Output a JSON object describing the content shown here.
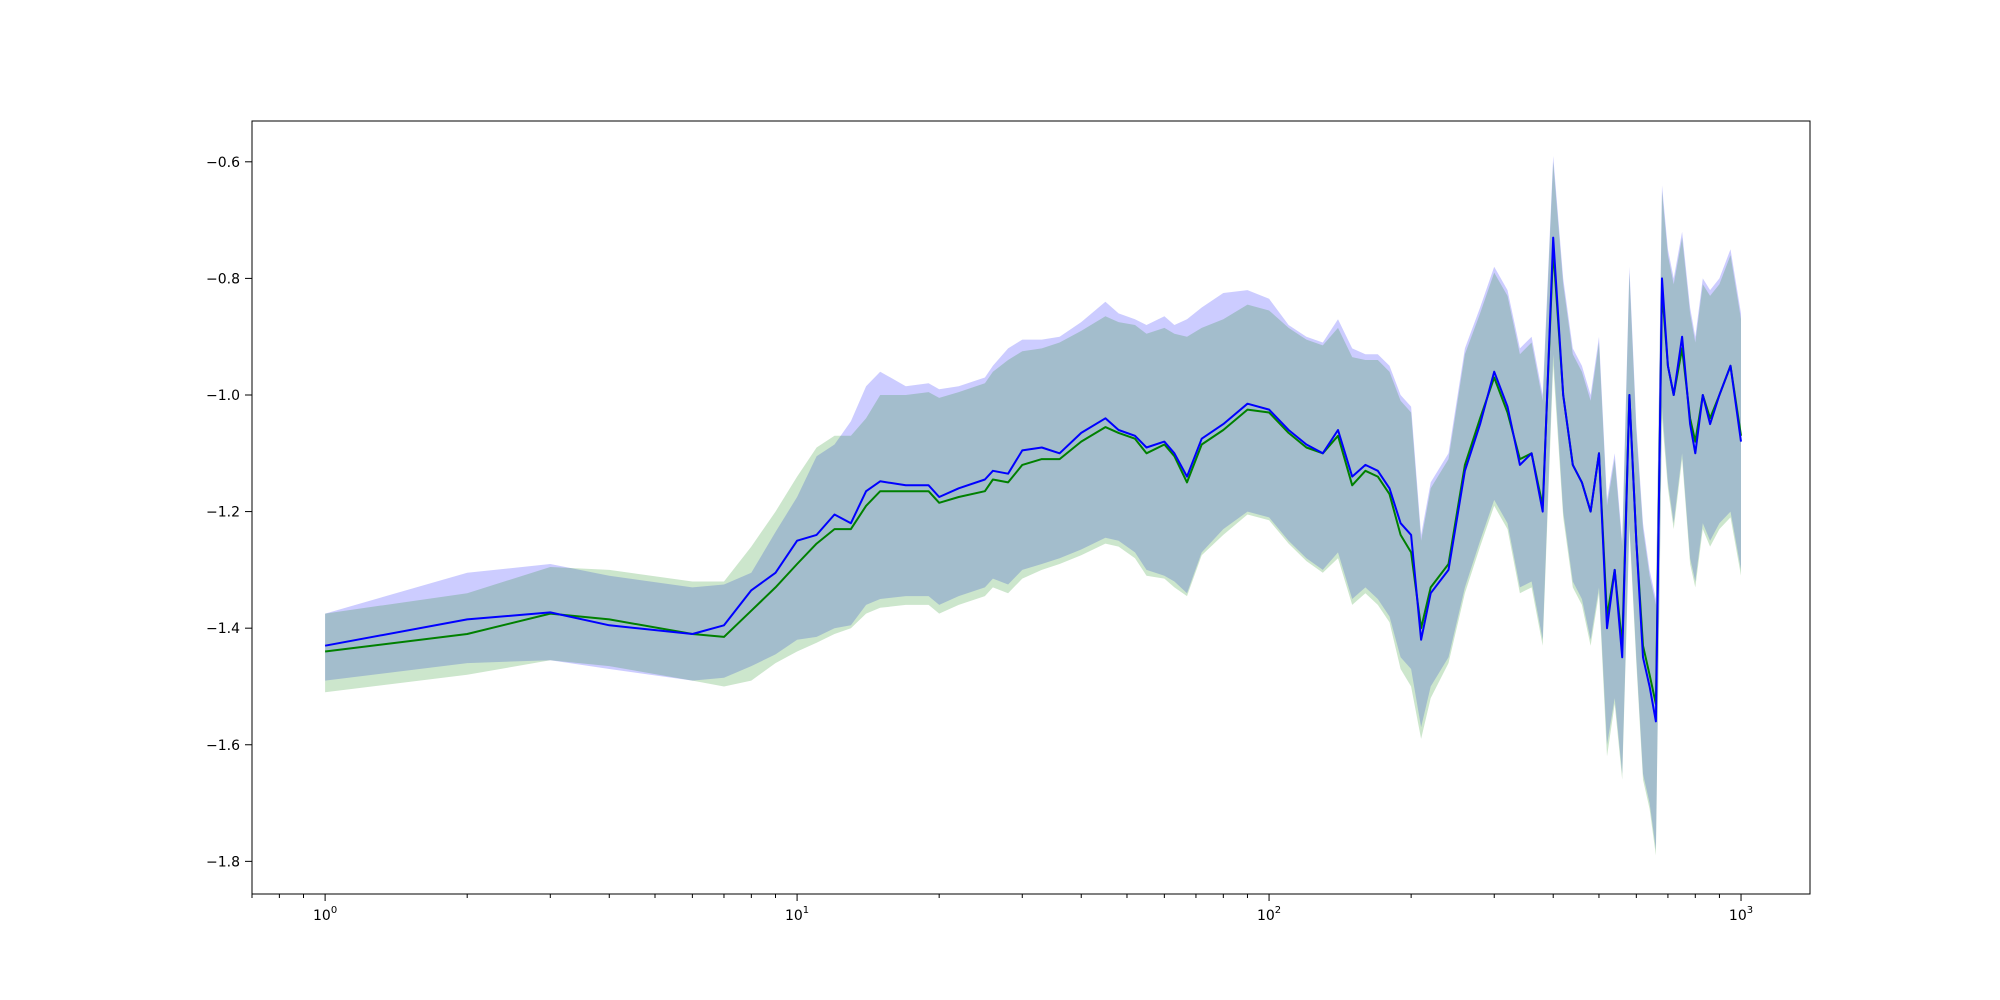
{
  "chart_data": {
    "type": "line",
    "title": "",
    "xlabel": "",
    "ylabel": "",
    "xscale": "log",
    "xlim": [
      0.7,
      1400
    ],
    "ylim": [
      -1.856,
      -0.53
    ],
    "grid": false,
    "x_ticks": [
      {
        "value": 1,
        "label": "10",
        "exp": "0"
      },
      {
        "value": 10,
        "label": "10",
        "exp": "1"
      },
      {
        "value": 100,
        "label": "10",
        "exp": "2"
      },
      {
        "value": 1000,
        "label": "10",
        "exp": "3"
      }
    ],
    "y_ticks": [
      {
        "value": -0.6,
        "label": "−0.6"
      },
      {
        "value": -0.8,
        "label": "−0.8"
      },
      {
        "value": -1.0,
        "label": "−1.0"
      },
      {
        "value": -1.2,
        "label": "−1.2"
      },
      {
        "value": -1.4,
        "label": "−1.4"
      },
      {
        "value": -1.6,
        "label": "−1.6"
      },
      {
        "value": -1.8,
        "label": "−1.8"
      }
    ],
    "x": [
      1,
      2,
      3,
      4,
      6,
      7,
      8,
      9,
      10,
      11,
      12,
      13,
      14,
      15,
      17,
      19,
      20,
      22,
      25,
      26,
      28,
      30,
      33,
      36,
      40,
      45,
      48,
      52,
      55,
      60,
      63,
      67,
      72,
      80,
      90,
      100,
      110,
      120,
      130,
      140,
      150,
      160,
      170,
      180,
      190,
      200,
      210,
      220,
      240,
      260,
      280,
      300,
      320,
      340,
      360,
      380,
      400,
      420,
      440,
      460,
      480,
      500,
      520,
      540,
      560,
      580,
      600,
      620,
      640,
      660,
      680,
      700,
      720,
      750,
      780,
      800,
      830,
      860,
      900,
      950,
      1000
    ],
    "series": [
      {
        "color": "#0000ff",
        "band_color": "#0000ff",
        "band_opacity": 0.2,
        "values": [
          -1.43,
          -1.385,
          -1.373,
          -1.395,
          -1.41,
          -1.395,
          -1.335,
          -1.305,
          -1.25,
          -1.24,
          -1.205,
          -1.22,
          -1.165,
          -1.148,
          -1.155,
          -1.155,
          -1.175,
          -1.16,
          -1.145,
          -1.13,
          -1.135,
          -1.095,
          -1.09,
          -1.1,
          -1.065,
          -1.04,
          -1.06,
          -1.07,
          -1.09,
          -1.08,
          -1.1,
          -1.14,
          -1.075,
          -1.05,
          -1.015,
          -1.025,
          -1.06,
          -1.085,
          -1.1,
          -1.06,
          -1.14,
          -1.12,
          -1.13,
          -1.16,
          -1.22,
          -1.24,
          -1.42,
          -1.34,
          -1.3,
          -1.13,
          -1.05,
          -0.96,
          -1.02,
          -1.12,
          -1.1,
          -1.2,
          -0.73,
          -1.0,
          -1.12,
          -1.15,
          -1.2,
          -1.1,
          -1.4,
          -1.3,
          -1.45,
          -1.0,
          -1.25,
          -1.45,
          -1.5,
          -1.56,
          -0.8,
          -0.95,
          -1.0,
          -0.9,
          -1.05,
          -1.1,
          -1.0,
          -1.05,
          -1.0,
          -0.95,
          -1.08
        ],
        "lower": [
          -1.49,
          -1.46,
          -1.455,
          -1.47,
          -1.49,
          -1.485,
          -1.465,
          -1.445,
          -1.42,
          -1.415,
          -1.4,
          -1.395,
          -1.36,
          -1.35,
          -1.345,
          -1.345,
          -1.36,
          -1.345,
          -1.33,
          -1.315,
          -1.325,
          -1.3,
          -1.29,
          -1.28,
          -1.265,
          -1.245,
          -1.25,
          -1.27,
          -1.3,
          -1.31,
          -1.32,
          -1.34,
          -1.27,
          -1.23,
          -1.2,
          -1.21,
          -1.25,
          -1.28,
          -1.3,
          -1.27,
          -1.35,
          -1.33,
          -1.35,
          -1.38,
          -1.45,
          -1.47,
          -1.57,
          -1.5,
          -1.45,
          -1.33,
          -1.25,
          -1.18,
          -1.22,
          -1.33,
          -1.32,
          -1.42,
          -0.93,
          -1.2,
          -1.32,
          -1.35,
          -1.42,
          -1.33,
          -1.6,
          -1.52,
          -1.65,
          -1.22,
          -1.45,
          -1.65,
          -1.7,
          -1.78,
          -1.02,
          -1.15,
          -1.22,
          -1.1,
          -1.28,
          -1.32,
          -1.22,
          -1.25,
          -1.22,
          -1.2,
          -1.3
        ],
        "upper": [
          -1.375,
          -1.305,
          -1.29,
          -1.31,
          -1.33,
          -1.325,
          -1.305,
          -1.235,
          -1.175,
          -1.105,
          -1.085,
          -1.045,
          -0.985,
          -0.96,
          -0.985,
          -0.98,
          -0.99,
          -0.985,
          -0.97,
          -0.95,
          -0.92,
          -0.905,
          -0.905,
          -0.9,
          -0.875,
          -0.84,
          -0.86,
          -0.87,
          -0.88,
          -0.865,
          -0.88,
          -0.87,
          -0.85,
          -0.825,
          -0.82,
          -0.835,
          -0.88,
          -0.9,
          -0.91,
          -0.87,
          -0.92,
          -0.93,
          -0.93,
          -0.95,
          -1.0,
          -1.02,
          -1.24,
          -1.15,
          -1.1,
          -0.92,
          -0.85,
          -0.78,
          -0.82,
          -0.92,
          -0.9,
          -1.0,
          -0.59,
          -0.8,
          -0.92,
          -0.95,
          -1.0,
          -0.9,
          -1.18,
          -1.1,
          -1.25,
          -0.78,
          -1.05,
          -1.22,
          -1.3,
          -1.35,
          -0.64,
          -0.75,
          -0.8,
          -0.72,
          -0.85,
          -0.9,
          -0.8,
          -0.82,
          -0.8,
          -0.75,
          -0.86
        ]
      },
      {
        "color": "#008000",
        "band_color": "#008000",
        "band_opacity": 0.2,
        "values": [
          -1.44,
          -1.41,
          -1.375,
          -1.385,
          -1.41,
          -1.415,
          -1.37,
          -1.33,
          -1.29,
          -1.255,
          -1.23,
          -1.23,
          -1.19,
          -1.165,
          -1.165,
          -1.165,
          -1.185,
          -1.175,
          -1.165,
          -1.145,
          -1.15,
          -1.12,
          -1.11,
          -1.11,
          -1.08,
          -1.055,
          -1.065,
          -1.075,
          -1.1,
          -1.085,
          -1.105,
          -1.15,
          -1.085,
          -1.06,
          -1.025,
          -1.03,
          -1.065,
          -1.09,
          -1.1,
          -1.07,
          -1.155,
          -1.13,
          -1.14,
          -1.17,
          -1.24,
          -1.27,
          -1.4,
          -1.33,
          -1.29,
          -1.12,
          -1.04,
          -0.97,
          -1.03,
          -1.11,
          -1.1,
          -1.19,
          -0.75,
          -1.0,
          -1.12,
          -1.15,
          -1.2,
          -1.1,
          -1.38,
          -1.3,
          -1.43,
          -1.0,
          -1.25,
          -1.43,
          -1.48,
          -1.53,
          -0.82,
          -0.95,
          -1.0,
          -0.92,
          -1.04,
          -1.08,
          -1.0,
          -1.04,
          -1.0,
          -0.95,
          -1.07
        ],
        "lower": [
          -1.51,
          -1.48,
          -1.455,
          -1.465,
          -1.49,
          -1.5,
          -1.49,
          -1.46,
          -1.44,
          -1.425,
          -1.41,
          -1.4,
          -1.375,
          -1.365,
          -1.36,
          -1.36,
          -1.375,
          -1.36,
          -1.345,
          -1.33,
          -1.34,
          -1.315,
          -1.3,
          -1.29,
          -1.275,
          -1.255,
          -1.26,
          -1.28,
          -1.31,
          -1.315,
          -1.33,
          -1.345,
          -1.275,
          -1.24,
          -1.205,
          -1.215,
          -1.255,
          -1.285,
          -1.305,
          -1.28,
          -1.36,
          -1.34,
          -1.36,
          -1.39,
          -1.47,
          -1.5,
          -1.59,
          -1.52,
          -1.46,
          -1.34,
          -1.26,
          -1.19,
          -1.23,
          -1.34,
          -1.33,
          -1.43,
          -0.95,
          -1.21,
          -1.33,
          -1.36,
          -1.43,
          -1.34,
          -1.62,
          -1.53,
          -1.66,
          -1.23,
          -1.46,
          -1.66,
          -1.71,
          -1.79,
          -1.04,
          -1.16,
          -1.23,
          -1.11,
          -1.29,
          -1.33,
          -1.23,
          -1.26,
          -1.23,
          -1.21,
          -1.31
        ],
        "upper": [
          -1.375,
          -1.34,
          -1.295,
          -1.3,
          -1.32,
          -1.32,
          -1.26,
          -1.2,
          -1.14,
          -1.09,
          -1.07,
          -1.07,
          -1.04,
          -1.0,
          -1.0,
          -0.995,
          -1.005,
          -0.995,
          -0.98,
          -0.96,
          -0.94,
          -0.925,
          -0.92,
          -0.91,
          -0.89,
          -0.865,
          -0.875,
          -0.88,
          -0.895,
          -0.885,
          -0.895,
          -0.9,
          -0.885,
          -0.87,
          -0.845,
          -0.855,
          -0.885,
          -0.905,
          -0.915,
          -0.885,
          -0.935,
          -0.94,
          -0.94,
          -0.96,
          -1.01,
          -1.03,
          -1.25,
          -1.16,
          -1.11,
          -0.93,
          -0.86,
          -0.79,
          -0.83,
          -0.93,
          -0.91,
          -1.01,
          -0.6,
          -0.81,
          -0.93,
          -0.96,
          -1.01,
          -0.91,
          -1.19,
          -1.11,
          -1.26,
          -0.79,
          -1.06,
          -1.23,
          -1.31,
          -1.36,
          -0.65,
          -0.76,
          -0.81,
          -0.73,
          -0.86,
          -0.91,
          -0.81,
          -0.83,
          -0.81,
          -0.76,
          -0.87
        ]
      }
    ]
  }
}
